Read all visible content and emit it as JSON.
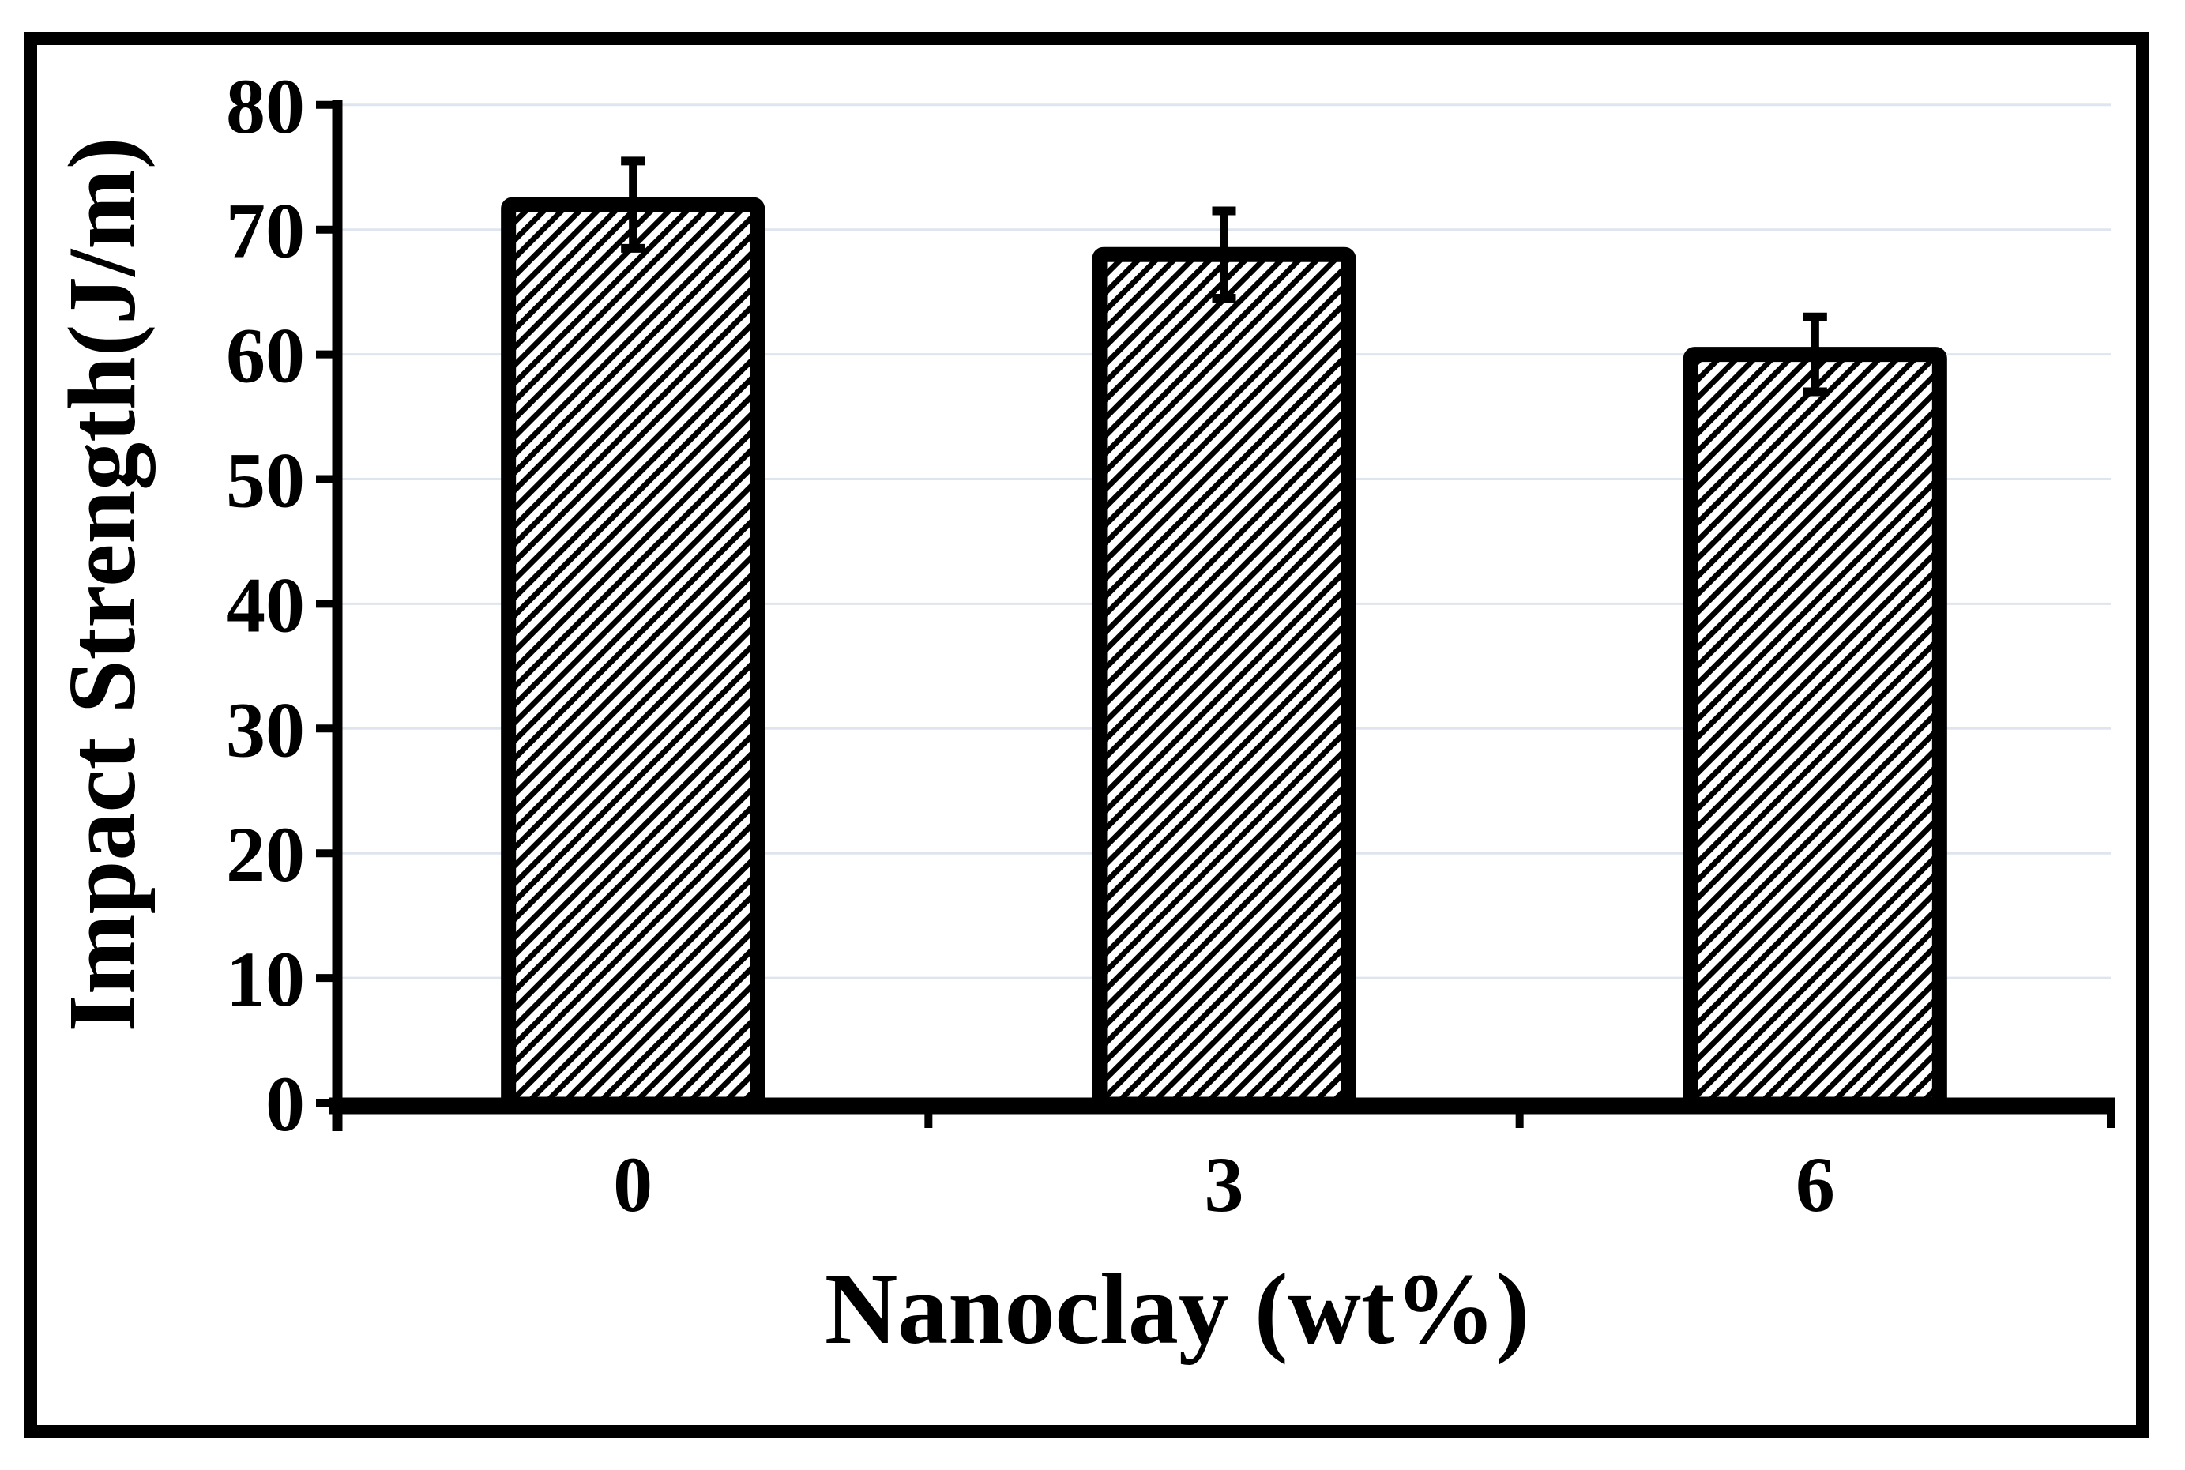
{
  "figure": {
    "background_color": "#ffffff",
    "frame_color": "#000000"
  },
  "chart_data": {
    "type": "bar",
    "title": "",
    "xlabel": "Nanoclay (wt%)",
    "ylabel": "Impact Strength(J/m)",
    "categories": [
      "0",
      "3",
      "6"
    ],
    "series": [
      {
        "name": "Impact Strength",
        "values": [
          72,
          68,
          60
        ],
        "error_upper": [
          75.5,
          71.5,
          63
        ],
        "error_lower": [
          68.5,
          64.5,
          57
        ]
      }
    ],
    "ylim": [
      0,
      80
    ],
    "yticks": [
      0,
      10,
      20,
      30,
      40,
      50,
      60,
      70,
      80
    ],
    "grid": true,
    "gridline_color": "#dfe5ee",
    "axis_color": "#000000",
    "bar_style": {
      "fill": "#ffffff",
      "hatch": "diagonal-forward-slash",
      "hatch_color": "#000000",
      "border_color": "#000000"
    },
    "legend_position": "none"
  }
}
